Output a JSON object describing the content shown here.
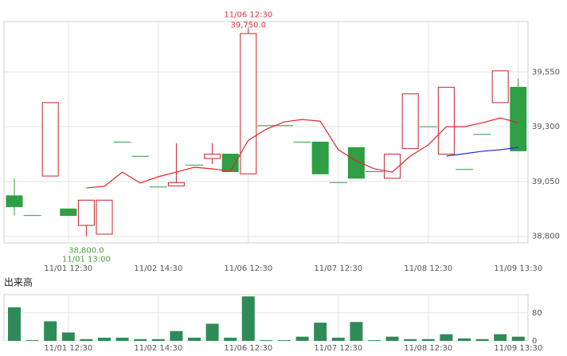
{
  "chart_data": [
    {
      "type": "candlestick",
      "categories": [
        null,
        null,
        null,
        "11/01 12:30",
        null,
        null,
        null,
        null,
        "11/02 14:30",
        null,
        null,
        null,
        null,
        "11/06 12:30",
        null,
        null,
        null,
        null,
        "11/07 12:30",
        null,
        null,
        null,
        null,
        "11/08 12:30",
        null,
        null,
        null,
        null,
        "11/09 13:30"
      ],
      "open": [
        38985,
        38895,
        39075,
        38925,
        38850,
        38810,
        39230,
        39165,
        39025,
        39030,
        39125,
        39155,
        39175,
        39085,
        39305,
        39305,
        39230,
        39230,
        39045,
        39205,
        39095,
        39065,
        39200,
        39300,
        39175,
        39105,
        39265,
        39410,
        39480
      ],
      "high": [
        39065,
        38895,
        39410,
        38925,
        38965,
        38965,
        39230,
        39165,
        39025,
        39225,
        39125,
        39225,
        39175,
        39750,
        39305,
        39305,
        39230,
        39230,
        39045,
        39205,
        39095,
        39175,
        39450,
        39300,
        39480,
        39105,
        39265,
        39555,
        39520
      ],
      "low": [
        38895,
        38895,
        39075,
        38895,
        38800,
        38810,
        39230,
        39165,
        39025,
        39030,
        39125,
        39130,
        39095,
        39085,
        39305,
        39305,
        39230,
        39085,
        39045,
        39065,
        39095,
        39065,
        39200,
        39300,
        39175,
        39105,
        39265,
        39410,
        39190
      ],
      "close": [
        38935,
        38895,
        39410,
        38895,
        38965,
        38965,
        39230,
        39165,
        39025,
        39045,
        39125,
        39175,
        39095,
        39725,
        39305,
        39305,
        39230,
        39085,
        39045,
        39065,
        39095,
        39175,
        39450,
        39300,
        39480,
        39105,
        39265,
        39555,
        39190
      ],
      "up_color": "#c8242b",
      "down_color": "#2f9e44",
      "series": [
        {
          "color": "#e0262e",
          "values": [
            null,
            null,
            null,
            null,
            39021,
            39028,
            39093,
            39043,
            39072,
            39093,
            39115,
            39108,
            39097,
            39238,
            39289,
            39322,
            39333,
            39325,
            39195,
            39144,
            39108,
            39093,
            39166,
            39217,
            39300,
            39300,
            39318,
            39340,
            39318
          ]
        },
        {
          "color": "#2b2bd0",
          "values": [
            null,
            null,
            null,
            null,
            null,
            null,
            null,
            null,
            null,
            null,
            null,
            null,
            null,
            null,
            null,
            null,
            null,
            null,
            null,
            null,
            null,
            null,
            null,
            null,
            39166,
            39177,
            39188,
            39195,
            39206
          ]
        }
      ],
      "high_label": {
        "time": "11/06 12:30",
        "value": "39,750.0",
        "color": "#d9363e"
      },
      "low_label": {
        "value": "38,800.0",
        "time": "11/01 13:00",
        "color": "#4f9a3f"
      },
      "ylim": [
        38770,
        39780
      ],
      "yticks": [
        {
          "value": 38800,
          "label": "38,800"
        },
        {
          "value": 39050,
          "label": "39,050"
        },
        {
          "value": 39300,
          "label": "39,300"
        },
        {
          "value": 39550,
          "label": "39,550"
        }
      ],
      "grid": true
    },
    {
      "type": "bar",
      "title": "出来高",
      "color": "#2e8b57",
      "values": [
        96,
        2,
        56,
        24,
        5,
        9,
        9,
        5,
        5,
        28,
        9,
        49,
        9,
        127,
        2,
        2,
        12,
        52,
        9,
        54,
        2,
        12,
        5,
        5,
        19,
        7,
        5,
        19,
        12
      ],
      "ylim": [
        0,
        132
      ],
      "yticks": [
        0,
        80
      ],
      "grid": true
    }
  ]
}
